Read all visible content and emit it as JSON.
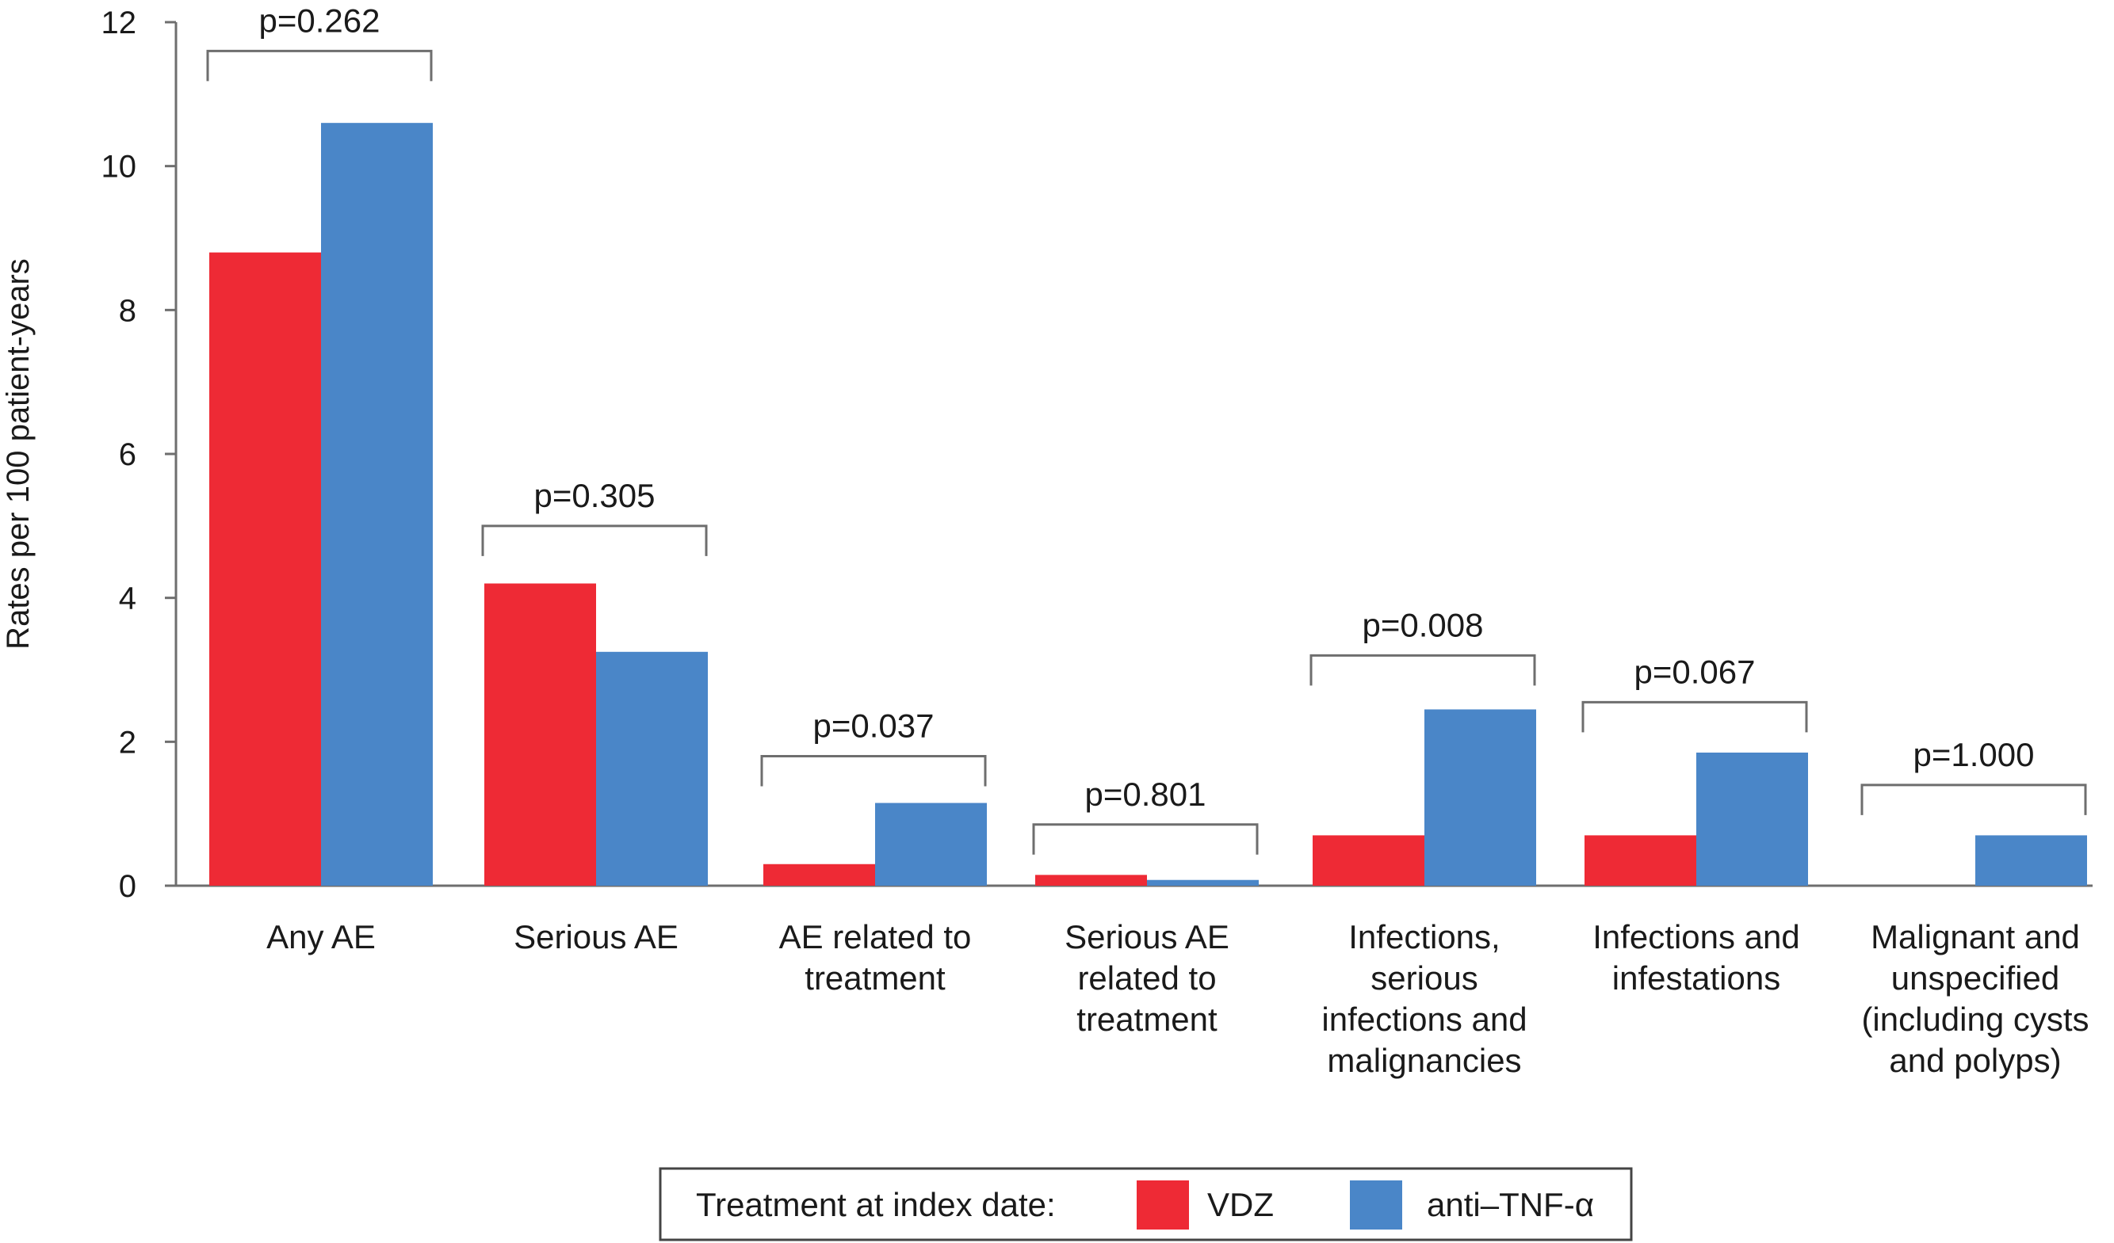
{
  "chart_data": {
    "type": "bar",
    "ylabel": "Rates per 100 patient-years",
    "ylim": [
      0,
      12
    ],
    "yticks": [
      0,
      2,
      4,
      6,
      8,
      10,
      12
    ],
    "categories": [
      [
        "Any AE"
      ],
      [
        "Serious AE"
      ],
      [
        "AE related to",
        "treatment"
      ],
      [
        "Serious AE",
        "related to",
        "treatment"
      ],
      [
        "Infections,",
        "serious",
        "infections and",
        "malignancies"
      ],
      [
        "Infections and",
        "infestations"
      ],
      [
        "Malignant and",
        "unspecified",
        "(including cysts",
        "and polyps)"
      ]
    ],
    "series": [
      {
        "name": "VDZ",
        "color": "#ee2a35",
        "values": [
          8.8,
          4.2,
          0.3,
          0.15,
          0.7,
          0.7,
          0.0
        ]
      },
      {
        "name": "anti–TNF-α",
        "color": "#4a86c8",
        "values": [
          10.6,
          3.25,
          1.15,
          0.08,
          2.45,
          1.85,
          0.7
        ]
      }
    ],
    "p_values": [
      "p=0.262",
      "p=0.305",
      "p=0.037",
      "p=0.801",
      "p=0.008",
      "p=0.067",
      "p=1.000"
    ],
    "bracket_levels": [
      11.6,
      5.0,
      1.8,
      0.85,
      3.2,
      2.55,
      1.4
    ],
    "legend": {
      "title": "Treatment at index date:",
      "placement": "bottom-center"
    },
    "grid": false
  }
}
